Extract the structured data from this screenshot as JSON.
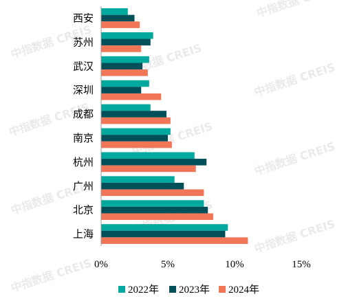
{
  "watermark": "中指数据 CREIS",
  "chart_data": {
    "type": "bar",
    "orientation": "horizontal",
    "categories": [
      "西安",
      "苏州",
      "武汉",
      "深圳",
      "成都",
      "南京",
      "杭州",
      "广州",
      "北京",
      "上海"
    ],
    "series": [
      {
        "name": "2022年",
        "color": "#00A99D",
        "values": [
          2.0,
          3.9,
          3.6,
          3.6,
          3.7,
          5.2,
          7.0,
          5.5,
          7.7,
          9.5
        ]
      },
      {
        "name": "2023年",
        "color": "#004F59",
        "values": [
          2.5,
          3.7,
          3.1,
          3.0,
          4.9,
          5.0,
          7.9,
          6.2,
          8.0,
          9.3
        ]
      },
      {
        "name": "2024年",
        "color": "#F07657",
        "values": [
          2.9,
          3.0,
          3.5,
          4.5,
          5.2,
          5.3,
          7.1,
          7.7,
          8.4,
          11.0
        ]
      }
    ],
    "xlim": [
      0,
      15
    ],
    "xticks": [
      0,
      5,
      10,
      15
    ],
    "xtick_labels": [
      "0%",
      "5%",
      "10%",
      "15%"
    ],
    "legend_position": "bottom",
    "grid": false
  }
}
